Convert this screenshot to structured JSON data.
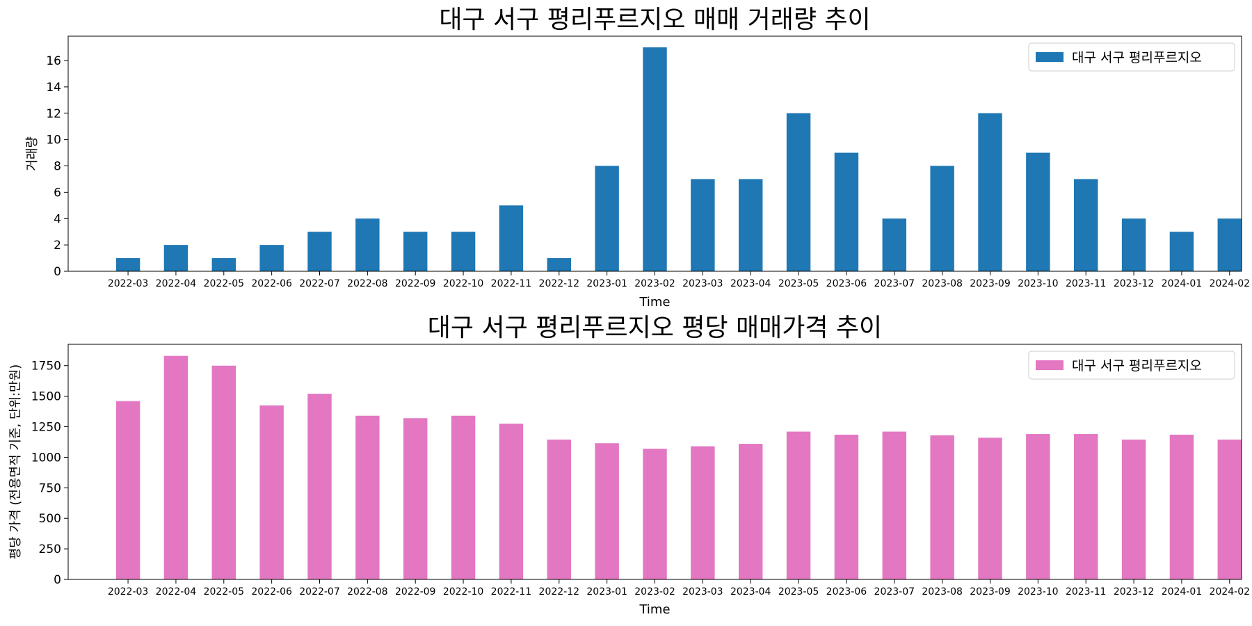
{
  "chart_data": [
    {
      "type": "bar",
      "title": "대구 서구 평리푸르지오 매매 거래량 추이",
      "xlabel": "Time",
      "ylabel": "거래량",
      "categories": [
        "2022-03",
        "2022-04",
        "2022-05",
        "2022-06",
        "2022-07",
        "2022-08",
        "2022-09",
        "2022-10",
        "2022-11",
        "2022-12",
        "2023-01",
        "2023-02",
        "2023-03",
        "2023-04",
        "2023-05",
        "2023-06",
        "2023-07",
        "2023-08",
        "2023-09",
        "2023-10",
        "2023-11",
        "2023-12",
        "2024-01",
        "2024-02"
      ],
      "series": [
        {
          "name": "대구 서구 평리푸르지오",
          "color": "#1f77b4",
          "values": [
            1,
            2,
            1,
            2,
            3,
            4,
            3,
            3,
            5,
            1,
            8,
            17,
            7,
            7,
            12,
            9,
            4,
            8,
            12,
            9,
            7,
            4,
            3,
            4
          ]
        }
      ],
      "ylim": [
        0,
        17.85
      ],
      "yticks": [
        0,
        2,
        4,
        6,
        8,
        10,
        12,
        14,
        16
      ],
      "grid": false,
      "legend_position": "top-right"
    },
    {
      "type": "bar",
      "title": "대구 서구 평리푸르지오 평당 매매가격 추이",
      "xlabel": "Time",
      "ylabel": "평당 가격 (전용면적 기준, 단위:만원)",
      "categories": [
        "2022-03",
        "2022-04",
        "2022-05",
        "2022-06",
        "2022-07",
        "2022-08",
        "2022-09",
        "2022-10",
        "2022-11",
        "2022-12",
        "2023-01",
        "2023-02",
        "2023-03",
        "2023-04",
        "2023-05",
        "2023-06",
        "2023-07",
        "2023-08",
        "2023-09",
        "2023-10",
        "2023-11",
        "2023-12",
        "2024-01",
        "2024-02"
      ],
      "series": [
        {
          "name": "대구 서구 평리푸르지오",
          "color": "#e377c2",
          "values": [
            1460,
            1830,
            1750,
            1425,
            1520,
            1340,
            1320,
            1340,
            1275,
            1145,
            1115,
            1070,
            1090,
            1110,
            1210,
            1185,
            1210,
            1180,
            1160,
            1190,
            1190,
            1145,
            1185,
            1145
          ]
        }
      ],
      "ylim": [
        0,
        1925
      ],
      "yticks": [
        0,
        250,
        500,
        750,
        1000,
        1250,
        1500,
        1750
      ],
      "grid": false,
      "legend_position": "top-right"
    }
  ]
}
